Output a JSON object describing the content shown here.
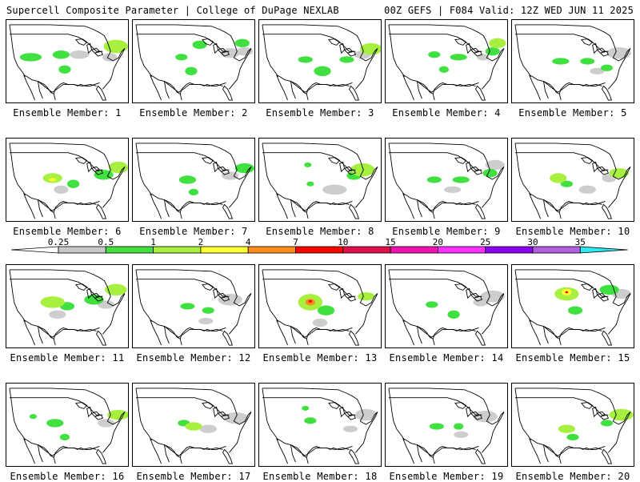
{
  "header": {
    "title": "Supercell Composite Parameter | College of DuPage NEXLAB",
    "run_info": "00Z GEFS | F084 Valid: 12Z WED JUN 11 2025"
  },
  "colors": {
    "map_line": "#000000",
    "border": "#000000",
    "background": "#ffffff"
  },
  "colorbar": {
    "bins": [
      {
        "label": "0.25",
        "color": "#c8c8c8"
      },
      {
        "label": "0.5",
        "color": "#3fe03f"
      },
      {
        "label": "1",
        "color": "#a8f040"
      },
      {
        "label": "2",
        "color": "#ffff33"
      },
      {
        "label": "4",
        "color": "#ff8c1a"
      },
      {
        "label": "7",
        "color": "#ff0000"
      },
      {
        "label": "10",
        "color": "#e0104a"
      },
      {
        "label": "15",
        "color": "#f012b0"
      },
      {
        "label": "20",
        "color": "#ff30ff"
      },
      {
        "label": "25",
        "color": "#8a00f0"
      },
      {
        "label": "30",
        "color": "#b060e0"
      },
      {
        "label": "35",
        "color": "#30e8f0"
      }
    ],
    "left_cap_color": "#ffffff"
  },
  "members": [
    {
      "label": "Ensemble Member: 1",
      "blobs": [
        [
          "G",
          0.2,
          0.45,
          0.09,
          0.05
        ],
        [
          "G",
          0.45,
          0.42,
          0.07,
          0.05
        ],
        [
          "L",
          0.9,
          0.32,
          0.1,
          0.08
        ],
        [
          "G",
          0.48,
          0.6,
          0.05,
          0.05
        ],
        [
          "g",
          0.6,
          0.42,
          0.08,
          0.05
        ],
        [
          "g",
          0.85,
          0.45,
          0.06,
          0.05
        ]
      ]
    },
    {
      "label": "Ensemble Member: 2",
      "blobs": [
        [
          "G",
          0.55,
          0.3,
          0.06,
          0.05
        ],
        [
          "G",
          0.48,
          0.62,
          0.05,
          0.05
        ],
        [
          "G",
          0.4,
          0.45,
          0.05,
          0.04
        ],
        [
          "g",
          0.8,
          0.4,
          0.08,
          0.06
        ],
        [
          "G",
          0.9,
          0.28,
          0.06,
          0.05
        ],
        [
          "g",
          0.92,
          0.38,
          0.07,
          0.05
        ]
      ]
    },
    {
      "label": "Ensemble Member: 3",
      "blobs": [
        [
          "G",
          0.52,
          0.62,
          0.07,
          0.06
        ],
        [
          "G",
          0.38,
          0.48,
          0.06,
          0.04
        ],
        [
          "G",
          0.72,
          0.48,
          0.06,
          0.04
        ],
        [
          "L",
          0.92,
          0.35,
          0.09,
          0.07
        ],
        [
          "g",
          0.85,
          0.42,
          0.07,
          0.05
        ]
      ]
    },
    {
      "label": "Ensemble Member: 4",
      "blobs": [
        [
          "G",
          0.4,
          0.42,
          0.05,
          0.04
        ],
        [
          "G",
          0.6,
          0.45,
          0.07,
          0.04
        ],
        [
          "G",
          0.88,
          0.38,
          0.06,
          0.05
        ],
        [
          "L",
          0.92,
          0.28,
          0.07,
          0.06
        ],
        [
          "g",
          0.8,
          0.45,
          0.05,
          0.04
        ],
        [
          "G",
          0.48,
          0.6,
          0.04,
          0.04
        ]
      ]
    },
    {
      "label": "Ensemble Member: 5",
      "blobs": [
        [
          "G",
          0.4,
          0.5,
          0.07,
          0.04
        ],
        [
          "G",
          0.62,
          0.5,
          0.06,
          0.04
        ],
        [
          "g",
          0.88,
          0.4,
          0.1,
          0.07
        ],
        [
          "G",
          0.78,
          0.58,
          0.05,
          0.04
        ],
        [
          "g",
          0.7,
          0.62,
          0.06,
          0.04
        ]
      ]
    },
    {
      "label": "Ensemble Member: 6",
      "blobs": [
        [
          "L",
          0.38,
          0.48,
          0.08,
          0.06
        ],
        [
          "Y",
          0.38,
          0.5,
          0.03,
          0.02
        ],
        [
          "G",
          0.55,
          0.55,
          0.05,
          0.05
        ],
        [
          "G",
          0.8,
          0.44,
          0.08,
          0.06
        ],
        [
          "L",
          0.92,
          0.35,
          0.08,
          0.07
        ],
        [
          "g",
          0.45,
          0.62,
          0.06,
          0.05
        ]
      ]
    },
    {
      "label": "Ensemble Member: 7",
      "blobs": [
        [
          "G",
          0.45,
          0.5,
          0.07,
          0.05
        ],
        [
          "G",
          0.5,
          0.65,
          0.04,
          0.04
        ],
        [
          "g",
          0.8,
          0.45,
          0.07,
          0.05
        ],
        [
          "G",
          0.92,
          0.36,
          0.08,
          0.06
        ]
      ]
    },
    {
      "label": "Ensemble Member: 8",
      "blobs": [
        [
          "L",
          0.85,
          0.38,
          0.1,
          0.08
        ],
        [
          "G",
          0.78,
          0.45,
          0.06,
          0.05
        ],
        [
          "g",
          0.62,
          0.62,
          0.1,
          0.06
        ],
        [
          "G",
          0.4,
          0.32,
          0.03,
          0.03
        ],
        [
          "G",
          0.42,
          0.55,
          0.03,
          0.03
        ]
      ]
    },
    {
      "label": "Ensemble Member: 9",
      "blobs": [
        [
          "G",
          0.4,
          0.5,
          0.06,
          0.04
        ],
        [
          "G",
          0.62,
          0.5,
          0.07,
          0.04
        ],
        [
          "g",
          0.55,
          0.62,
          0.07,
          0.04
        ],
        [
          "G",
          0.86,
          0.42,
          0.06,
          0.05
        ],
        [
          "g",
          0.9,
          0.32,
          0.08,
          0.06
        ]
      ]
    },
    {
      "label": "Ensemble Member: 10",
      "blobs": [
        [
          "L",
          0.38,
          0.48,
          0.07,
          0.06
        ],
        [
          "G",
          0.45,
          0.55,
          0.05,
          0.04
        ],
        [
          "L",
          0.88,
          0.42,
          0.08,
          0.06
        ],
        [
          "g",
          0.8,
          0.48,
          0.06,
          0.05
        ],
        [
          "g",
          0.62,
          0.62,
          0.07,
          0.05
        ]
      ]
    },
    {
      "label": "Ensemble Member: 11",
      "blobs": [
        [
          "L",
          0.38,
          0.45,
          0.1,
          0.07
        ],
        [
          "G",
          0.5,
          0.5,
          0.06,
          0.05
        ],
        [
          "G",
          0.72,
          0.42,
          0.08,
          0.06
        ],
        [
          "L",
          0.9,
          0.3,
          0.09,
          0.07
        ],
        [
          "g",
          0.42,
          0.6,
          0.07,
          0.05
        ],
        [
          "g",
          0.82,
          0.48,
          0.07,
          0.05
        ]
      ]
    },
    {
      "label": "Ensemble Member: 12",
      "blobs": [
        [
          "G",
          0.45,
          0.5,
          0.06,
          0.04
        ],
        [
          "G",
          0.62,
          0.55,
          0.05,
          0.04
        ],
        [
          "g",
          0.8,
          0.42,
          0.1,
          0.07
        ],
        [
          "g",
          0.6,
          0.68,
          0.06,
          0.04
        ]
      ]
    },
    {
      "label": "Ensemble Member: 13",
      "blobs": [
        [
          "L",
          0.42,
          0.45,
          0.1,
          0.1
        ],
        [
          "O",
          0.42,
          0.45,
          0.04,
          0.04
        ],
        [
          "R",
          0.42,
          0.44,
          0.015,
          0.015
        ],
        [
          "G",
          0.55,
          0.55,
          0.07,
          0.06
        ],
        [
          "L",
          0.88,
          0.38,
          0.07,
          0.05
        ],
        [
          "g",
          0.5,
          0.7,
          0.06,
          0.05
        ]
      ]
    },
    {
      "label": "Ensemble Member: 14",
      "blobs": [
        [
          "G",
          0.38,
          0.48,
          0.05,
          0.04
        ],
        [
          "G",
          0.56,
          0.6,
          0.05,
          0.05
        ],
        [
          "g",
          0.88,
          0.38,
          0.1,
          0.07
        ],
        [
          "g",
          0.78,
          0.45,
          0.06,
          0.05
        ]
      ]
    },
    {
      "label": "Ensemble Member: 15",
      "blobs": [
        [
          "L",
          0.45,
          0.35,
          0.1,
          0.08
        ],
        [
          "Y",
          0.45,
          0.33,
          0.04,
          0.04
        ],
        [
          "R",
          0.45,
          0.33,
          0.012,
          0.012
        ],
        [
          "G",
          0.52,
          0.55,
          0.06,
          0.05
        ],
        [
          "G",
          0.8,
          0.3,
          0.08,
          0.06
        ],
        [
          "g",
          0.9,
          0.35,
          0.08,
          0.06
        ]
      ]
    },
    {
      "label": "Ensemble Member: 16",
      "blobs": [
        [
          "G",
          0.4,
          0.48,
          0.07,
          0.05
        ],
        [
          "G",
          0.48,
          0.65,
          0.04,
          0.04
        ],
        [
          "G",
          0.22,
          0.4,
          0.03,
          0.03
        ],
        [
          "L",
          0.92,
          0.38,
          0.09,
          0.06
        ],
        [
          "g",
          0.82,
          0.48,
          0.07,
          0.05
        ]
      ]
    },
    {
      "label": "Ensemble Member: 17",
      "blobs": [
        [
          "L",
          0.5,
          0.52,
          0.07,
          0.05
        ],
        [
          "G",
          0.42,
          0.48,
          0.05,
          0.04
        ],
        [
          "g",
          0.62,
          0.55,
          0.07,
          0.05
        ],
        [
          "g",
          0.85,
          0.42,
          0.1,
          0.07
        ]
      ]
    },
    {
      "label": "Ensemble Member: 18",
      "blobs": [
        [
          "G",
          0.42,
          0.45,
          0.05,
          0.04
        ],
        [
          "G",
          0.38,
          0.3,
          0.03,
          0.03
        ],
        [
          "g",
          0.88,
          0.38,
          0.09,
          0.07
        ],
        [
          "g",
          0.75,
          0.55,
          0.06,
          0.04
        ]
      ]
    },
    {
      "label": "Ensemble Member: 19",
      "blobs": [
        [
          "G",
          0.42,
          0.52,
          0.06,
          0.04
        ],
        [
          "G",
          0.6,
          0.52,
          0.04,
          0.04
        ],
        [
          "g",
          0.82,
          0.4,
          0.1,
          0.07
        ],
        [
          "g",
          0.62,
          0.62,
          0.06,
          0.04
        ]
      ]
    },
    {
      "label": "Ensemble Member: 20",
      "blobs": [
        [
          "L",
          0.45,
          0.55,
          0.07,
          0.05
        ],
        [
          "G",
          0.5,
          0.65,
          0.05,
          0.04
        ],
        [
          "L",
          0.9,
          0.38,
          0.1,
          0.07
        ],
        [
          "G",
          0.78,
          0.48,
          0.05,
          0.04
        ]
      ]
    }
  ]
}
